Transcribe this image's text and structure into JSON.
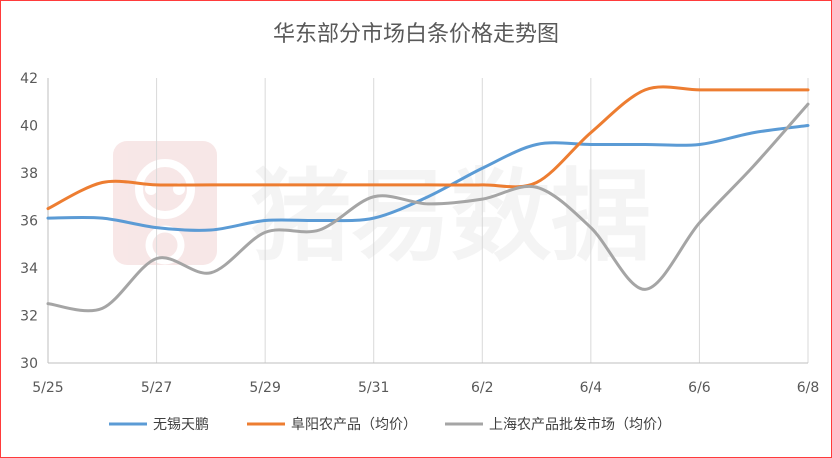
{
  "chart_data": {
    "type": "line",
    "title": "华东部分市场白条价格走势图",
    "xlabel": "",
    "ylabel": "",
    "x": [
      "5/25",
      "5/26",
      "5/27",
      "5/28",
      "5/29",
      "5/30",
      "5/31",
      "6/1",
      "6/2",
      "6/3",
      "6/4",
      "6/5",
      "6/6",
      "6/7",
      "6/8"
    ],
    "x_tick_labels": [
      "5/25",
      "5/27",
      "5/29",
      "5/31",
      "6/2",
      "6/4",
      "6/6",
      "6/8"
    ],
    "ylim": [
      30,
      42
    ],
    "y_ticks": [
      30,
      32,
      34,
      36,
      38,
      40,
      42
    ],
    "grid": "vertical",
    "legend_position": "bottom",
    "series": [
      {
        "name": "无锡天鹏",
        "color": "#5b9bd5",
        "values": [
          36.1,
          36.1,
          35.7,
          35.6,
          36.0,
          36.0,
          36.1,
          37.0,
          38.2,
          39.2,
          39.2,
          39.2,
          39.2,
          39.7,
          40.0
        ]
      },
      {
        "name": "阜阳农产品（均价）",
        "color": "#ed7d31",
        "values": [
          36.5,
          37.6,
          37.5,
          37.5,
          37.5,
          37.5,
          37.5,
          37.5,
          37.5,
          37.6,
          39.7,
          41.5,
          41.5,
          41.5,
          41.5
        ]
      },
      {
        "name": "上海农产品批发市场（均价）",
        "color": "#a5a5a5",
        "values": [
          32.5,
          32.3,
          34.4,
          33.8,
          35.5,
          35.6,
          37.0,
          36.7,
          36.9,
          37.4,
          35.7,
          33.1,
          35.9,
          38.3,
          40.9
        ]
      }
    ]
  },
  "watermark": {
    "icon": "pig-logo-icon",
    "text": "猪易数据",
    "color": "#f3dede"
  }
}
